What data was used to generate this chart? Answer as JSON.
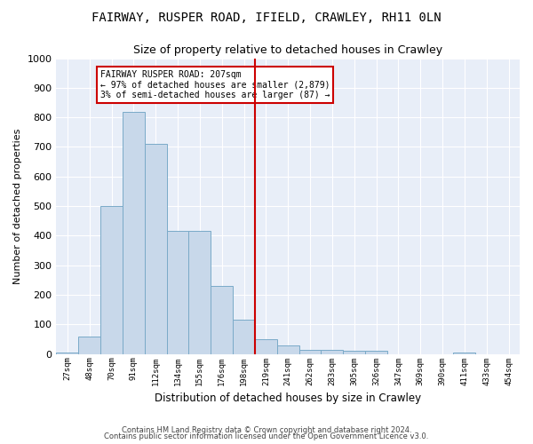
{
  "title": "FAIRWAY, RUSPER ROAD, IFIELD, CRAWLEY, RH11 0LN",
  "subtitle": "Size of property relative to detached houses in Crawley",
  "xlabel": "Distribution of detached houses by size in Crawley",
  "ylabel": "Number of detached properties",
  "footer1": "Contains HM Land Registry data © Crown copyright and database right 2024.",
  "footer2": "Contains public sector information licensed under the Open Government Licence v3.0.",
  "bar_color": "#c8d8ea",
  "bar_edge_color": "#7aaac8",
  "background_color": "#e8eef8",
  "grid_color": "#ffffff",
  "annotation_text": "FAIRWAY RUSPER ROAD: 207sqm\n← 97% of detached houses are smaller (2,879)\n3% of semi-detached houses are larger (87) →",
  "vline_x_index": 9,
  "annotation_box_color": "#cc0000",
  "categories": [
    "27sqm",
    "48sqm",
    "70sqm",
    "91sqm",
    "112sqm",
    "134sqm",
    "155sqm",
    "176sqm",
    "198sqm",
    "219sqm",
    "241sqm",
    "262sqm",
    "283sqm",
    "305sqm",
    "326sqm",
    "347sqm",
    "369sqm",
    "390sqm",
    "411sqm",
    "433sqm",
    "454sqm"
  ],
  "values": [
    5,
    58,
    500,
    820,
    710,
    415,
    415,
    230,
    115,
    50,
    30,
    15,
    15,
    12,
    10,
    0,
    0,
    0,
    5,
    0,
    0
  ],
  "ylim": [
    0,
    1000
  ],
  "yticks": [
    0,
    100,
    200,
    300,
    400,
    500,
    600,
    700,
    800,
    900,
    1000
  ],
  "num_bins": 21
}
